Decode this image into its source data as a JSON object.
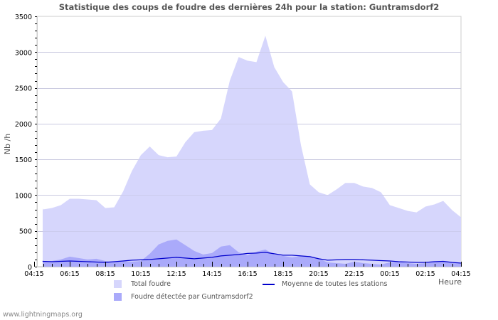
{
  "chart_data": {
    "type": "area",
    "title": "Statistique des coups de foudre des dernières 24h pour la station: Guntramsdorf2",
    "xlabel": "Heure",
    "ylabel": "Nb /h",
    "ylim": [
      0,
      3500
    ],
    "yticks": [
      0,
      500,
      1000,
      1500,
      2000,
      2500,
      3000,
      3500
    ],
    "xtick_labels": [
      "04:15",
      "06:15",
      "08:15",
      "10:15",
      "12:15",
      "14:15",
      "16:15",
      "18:15",
      "20:15",
      "22:15",
      "00:15",
      "02:15",
      "04:15"
    ],
    "grid": true,
    "legend_position": "bottom",
    "x": [
      "04:15",
      "04:45",
      "05:15",
      "05:45",
      "06:15",
      "06:45",
      "07:15",
      "07:45",
      "08:15",
      "08:45",
      "09:15",
      "09:45",
      "10:15",
      "10:45",
      "11:15",
      "11:45",
      "12:15",
      "12:45",
      "13:15",
      "13:45",
      "14:15",
      "14:45",
      "15:15",
      "15:45",
      "16:15",
      "16:45",
      "17:15",
      "17:45",
      "18:15",
      "18:45",
      "19:15",
      "19:45",
      "20:15",
      "20:45",
      "21:15",
      "21:45",
      "22:15",
      "22:45",
      "23:15",
      "23:45",
      "00:15",
      "00:45",
      "01:15",
      "01:45",
      "02:15",
      "02:45",
      "03:15",
      "03:45",
      "04:15"
    ],
    "series": [
      {
        "name": "Total foudre",
        "type": "area",
        "color": "#d6d6fc",
        "values": [
          820,
          800,
          820,
          860,
          950,
          950,
          940,
          930,
          820,
          830,
          1050,
          1340,
          1560,
          1680,
          1560,
          1530,
          1540,
          1740,
          1880,
          1900,
          1910,
          2070,
          2600,
          2930,
          2880,
          2860,
          3230,
          2790,
          2580,
          2450,
          1700,
          1150,
          1040,
          1000,
          1080,
          1170,
          1170,
          1120,
          1100,
          1040,
          860,
          820,
          780,
          760,
          840,
          870,
          920,
          790,
          690
        ]
      },
      {
        "name": "Foudre détectée par Guntramsdorf2",
        "type": "area",
        "color": "#aaaafa",
        "values": [
          90,
          75,
          80,
          100,
          140,
          120,
          100,
          110,
          80,
          70,
          80,
          70,
          80,
          180,
          310,
          360,
          380,
          300,
          220,
          170,
          190,
          280,
          300,
          200,
          160,
          210,
          240,
          170,
          150,
          130,
          150,
          150,
          110,
          60,
          50,
          40,
          70,
          50,
          40,
          30,
          60,
          70,
          50,
          40,
          50,
          70,
          70,
          60,
          40
        ]
      },
      {
        "name": "Moyenne de toutes les stations",
        "type": "line",
        "color": "#0000cc",
        "values": [
          80,
          75,
          70,
          75,
          80,
          75,
          70,
          65,
          60,
          70,
          80,
          90,
          95,
          100,
          110,
          120,
          130,
          120,
          110,
          120,
          130,
          150,
          160,
          170,
          185,
          190,
          200,
          180,
          160,
          160,
          150,
          140,
          110,
          90,
          95,
          100,
          100,
          95,
          90,
          85,
          80,
          70,
          65,
          60,
          60,
          70,
          75,
          60,
          50
        ]
      }
    ]
  },
  "header": {
    "title": "Statistique des coups de foudre des dernières 24h pour la station: Guntramsdorf2"
  },
  "axes": {
    "y_label": "Nb /h",
    "x_label": "Heure"
  },
  "legend": {
    "total": "Total foudre",
    "station": "Foudre détectée par Guntramsdorf2",
    "average": "Moyenne de toutes les stations"
  },
  "footer": {
    "source": "www.lightningmaps.org"
  }
}
